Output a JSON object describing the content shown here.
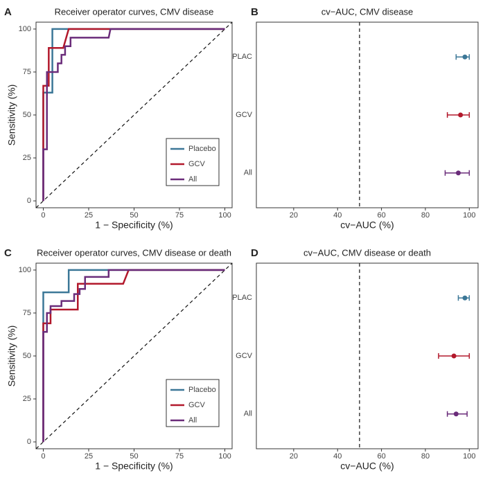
{
  "chart_data": [
    {
      "type": "roc",
      "panel_label": "A",
      "title": "Receiver operator curves, CMV disease",
      "x_label": "1 − Specificity (%)",
      "y_label": "Sensitivity (%)",
      "xlim": [
        -4,
        104
      ],
      "ylim": [
        -4,
        104
      ],
      "xticks": [
        0,
        25,
        50,
        75,
        100
      ],
      "yticks": [
        0,
        25,
        50,
        75,
        100
      ],
      "grid": false,
      "legend": "bottom-right",
      "series": [
        {
          "name": "Placebo",
          "color": "#3b7797",
          "x": [
            0,
            0,
            5,
            5,
            100
          ],
          "values": [
            0,
            63,
            63,
            100,
            100
          ]
        },
        {
          "name": "GCV",
          "color": "#b2182b",
          "x": [
            0,
            0,
            3,
            3,
            11,
            14,
            100
          ],
          "values": [
            0,
            67,
            67,
            89,
            89,
            100,
            100
          ]
        },
        {
          "name": "All",
          "color": "#6a2c7a",
          "x": [
            0,
            0,
            2,
            2,
            8,
            8,
            10,
            10,
            12,
            12,
            15,
            15,
            36,
            37,
            100
          ],
          "values": [
            0,
            30,
            30,
            75,
            75,
            80,
            80,
            85,
            85,
            90,
            90,
            95,
            95,
            100,
            100
          ]
        }
      ]
    },
    {
      "type": "forest",
      "panel_label": "B",
      "title": "cv−AUC, CMV disease",
      "x_label": "cv−AUC (%)",
      "xlim": [
        3,
        104
      ],
      "xticks": [
        20,
        40,
        60,
        80,
        100
      ],
      "ref_line": 50,
      "categories": [
        "PLAC",
        "GCV",
        "All"
      ],
      "colors": [
        "#3b7797",
        "#b2182b",
        "#6a2c7a"
      ],
      "values": [
        98,
        96,
        95
      ],
      "lower": [
        94,
        90,
        89
      ],
      "upper": [
        100,
        100,
        100
      ]
    },
    {
      "type": "roc",
      "panel_label": "C",
      "title": "Receiver operator curves, CMV disease or death",
      "x_label": "1 − Specificity (%)",
      "y_label": "Sensitivity (%)",
      "xlim": [
        -4,
        104
      ],
      "ylim": [
        -4,
        104
      ],
      "xticks": [
        0,
        25,
        50,
        75,
        100
      ],
      "yticks": [
        0,
        25,
        50,
        75,
        100
      ],
      "grid": false,
      "legend": "bottom-right",
      "series": [
        {
          "name": "Placebo",
          "color": "#3b7797",
          "x": [
            0,
            0,
            14,
            14,
            100
          ],
          "values": [
            0,
            87,
            87,
            100,
            100
          ]
        },
        {
          "name": "GCV",
          "color": "#b2182b",
          "x": [
            0,
            0,
            4,
            4,
            19,
            19,
            44,
            47,
            100
          ],
          "values": [
            0,
            69,
            69,
            77,
            77,
            92,
            92,
            100,
            100
          ]
        },
        {
          "name": "All",
          "color": "#6a2c7a",
          "x": [
            0,
            0,
            2,
            2,
            4,
            4,
            10,
            10,
            17,
            17,
            20,
            20,
            23,
            23,
            36,
            36,
            100
          ],
          "values": [
            0,
            64,
            64,
            75,
            75,
            79,
            79,
            82,
            82,
            86,
            86,
            89,
            89,
            96,
            96,
            100,
            100
          ]
        }
      ]
    },
    {
      "type": "forest",
      "panel_label": "D",
      "title": "cv−AUC, CMV disease or death",
      "x_label": "cv−AUC (%)",
      "xlim": [
        3,
        104
      ],
      "xticks": [
        20,
        40,
        60,
        80,
        100
      ],
      "ref_line": 50,
      "categories": [
        "PLAC",
        "GCV",
        "All"
      ],
      "colors": [
        "#3b7797",
        "#b2182b",
        "#6a2c7a"
      ],
      "values": [
        98,
        93,
        94
      ],
      "lower": [
        95,
        86,
        90
      ],
      "upper": [
        100,
        100,
        99
      ]
    }
  ]
}
